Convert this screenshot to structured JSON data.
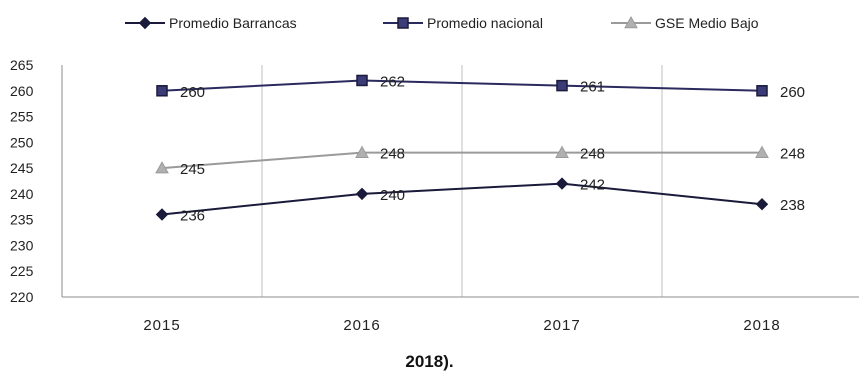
{
  "chart_data": {
    "type": "line",
    "categories": [
      "2015",
      "2016",
      "2017",
      "2018"
    ],
    "series": [
      {
        "name": "Promedio Barrancas",
        "values": [
          236,
          240,
          242,
          238
        ],
        "color": "#1a1a3a",
        "marker": "diamond"
      },
      {
        "name": "Promedio nacional",
        "values": [
          260,
          262,
          261,
          260
        ],
        "color": "#2a2a5e",
        "marker": "square"
      },
      {
        "name": "GSE Medio Bajo",
        "values": [
          245,
          248,
          248,
          248
        ],
        "color": "#9a9a9a",
        "marker": "triangle"
      }
    ],
    "y_ticks": [
      265,
      260,
      255,
      250,
      245,
      240,
      235,
      230,
      225,
      220
    ],
    "ylim": [
      220,
      265
    ],
    "grid": "vertical",
    "legend_position": "top"
  },
  "caption": "2018)."
}
